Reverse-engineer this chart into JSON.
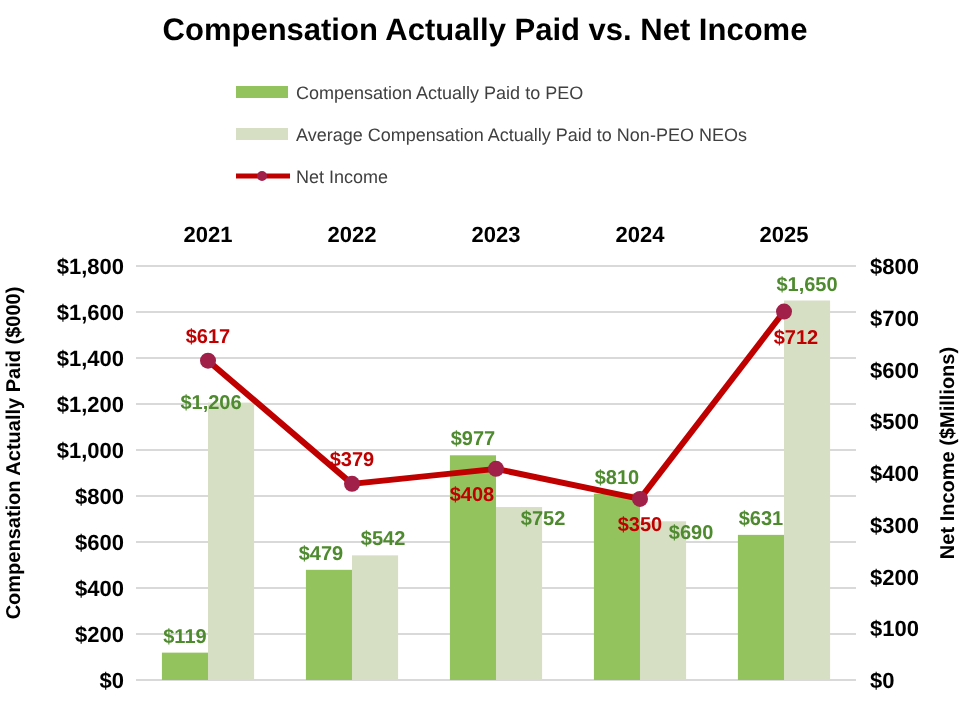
{
  "chart_data": {
    "type": "bar",
    "title": "Compensation Actually Paid vs. Net Income",
    "ylabel": "Compensation Actually Paid ($000)",
    "y2label": "Net Income ($Millions)",
    "categories": [
      "2021",
      "2022",
      "2023",
      "2024",
      "2025"
    ],
    "series": [
      {
        "name": "Compensation Actually Paid to PEO",
        "color": "#92c35c",
        "values": [
          119,
          479,
          977,
          810,
          631
        ],
        "value_labels": [
          "$119",
          "$479",
          "$977",
          "$810",
          "$631"
        ]
      },
      {
        "name": "Average Compensation Actually Paid to Non-PEO NEOs",
        "color": "#d6dfc4",
        "values": [
          1206,
          542,
          752,
          690,
          1650
        ],
        "value_labels": [
          "$1,206",
          "$542",
          "$752",
          "$690",
          "$1,650"
        ]
      },
      {
        "name": "Net Income",
        "type": "line",
        "axis": "y2",
        "color": "#c00000",
        "marker": "circle",
        "values": [
          617,
          379,
          408,
          350,
          712
        ],
        "value_labels": [
          "$617",
          "$379",
          "$408",
          "$350",
          "$712"
        ]
      }
    ],
    "ylim": [
      0,
      1800
    ],
    "yticks": [
      {
        "value": 0,
        "label": "$0"
      },
      {
        "value": 200,
        "label": "$200"
      },
      {
        "value": 400,
        "label": "$400"
      },
      {
        "value": 600,
        "label": "$600"
      },
      {
        "value": 800,
        "label": "$800"
      },
      {
        "value": 1000,
        "label": "$1,000"
      },
      {
        "value": 1200,
        "label": "$1,200"
      },
      {
        "value": 1400,
        "label": "$1,400"
      },
      {
        "value": 1600,
        "label": "$1,600"
      },
      {
        "value": 1800,
        "label": "$1,800"
      }
    ],
    "y2lim": [
      0,
      800
    ],
    "y2ticks": [
      {
        "value": 0,
        "label": "$0"
      },
      {
        "value": 100,
        "label": "$100"
      },
      {
        "value": 200,
        "label": "$200"
      },
      {
        "value": 300,
        "label": "$300"
      },
      {
        "value": 400,
        "label": "$400"
      },
      {
        "value": 500,
        "label": "$500"
      },
      {
        "value": 600,
        "label": "$600"
      },
      {
        "value": 700,
        "label": "$700"
      },
      {
        "value": 800,
        "label": "$800"
      }
    ],
    "grid": "y",
    "legend": "top"
  }
}
